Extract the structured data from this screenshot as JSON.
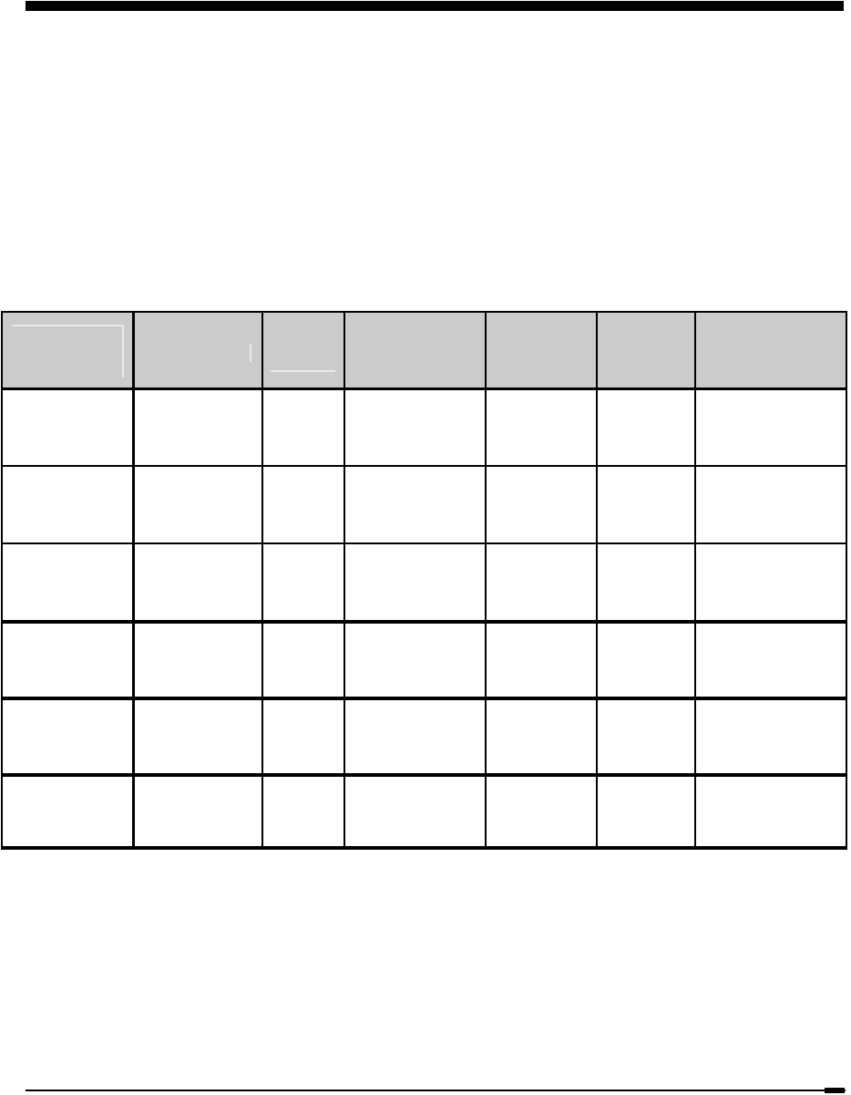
{
  "document": {
    "page_background": "#ffffff",
    "top_bar_color": "#000000",
    "footer_rule_color": "#000000"
  },
  "table": {
    "header_fill": "#cbcbcb",
    "body_fill": "#ffffff",
    "border_color": "#000000",
    "column_count": 7,
    "row_count": 6,
    "columns": [
      "",
      "",
      "",
      "",
      "",
      "",
      ""
    ],
    "rows": [
      [
        "",
        "",
        "",
        "",
        "",
        "",
        ""
      ],
      [
        "",
        "",
        "",
        "",
        "",
        "",
        ""
      ],
      [
        "",
        "",
        "",
        "",
        "",
        "",
        ""
      ],
      [
        "",
        "",
        "",
        "",
        "",
        "",
        ""
      ],
      [
        "",
        "",
        "",
        "",
        "",
        "",
        ""
      ],
      [
        "",
        "",
        "",
        "",
        "",
        "",
        ""
      ]
    ]
  },
  "erasure_marks": {
    "color": "#e9e9e9"
  }
}
